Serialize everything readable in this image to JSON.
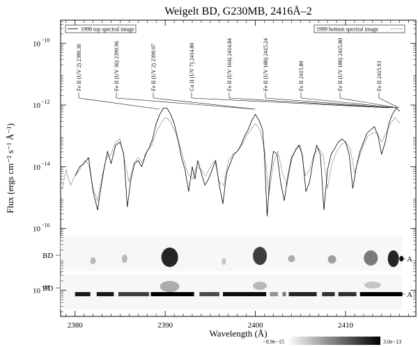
{
  "chart_data": {
    "type": "line",
    "title": "Weigelt BD, G230MB, 2416Å–2",
    "xlabel": "Wavelength (Å)",
    "ylabel": "Flux (ergs cm⁻² s⁻¹ Å⁻¹)",
    "xlim": [
      2378.4,
      2417.8
    ],
    "ylim_log10": [
      -18.85,
      -9.25
    ],
    "y_scale": "log",
    "grid": false,
    "x_ticks": [
      2380,
      2390,
      2400,
      2410
    ],
    "y_ticks_exponent": [
      -10,
      -12,
      -14,
      -16,
      -18
    ],
    "legend": [
      {
        "label": "1998 top spectral image",
        "style": "solid",
        "position": "top-left"
      },
      {
        "label": "1999 bottom spectral image",
        "style": "dotted",
        "position": "top-right"
      }
    ],
    "series": [
      {
        "name": "1998 top spectral image",
        "style": "solid",
        "x": [
          2380.0,
          2380.5,
          2381.0,
          2381.5,
          2382.0,
          2382.5,
          2382.8,
          2383.2,
          2383.6,
          2384.0,
          2384.5,
          2385.0,
          2385.4,
          2385.8,
          2386.2,
          2386.6,
          2387.0,
          2387.4,
          2387.8,
          2388.2,
          2388.6,
          2389.0,
          2389.4,
          2389.8,
          2390.2,
          2390.6,
          2391.0,
          2391.4,
          2391.8,
          2392.2,
          2392.6,
          2393.0,
          2393.3,
          2393.6,
          2394.0,
          2394.4,
          2394.8,
          2395.2,
          2395.6,
          2396.0,
          2396.4,
          2396.8,
          2397.2,
          2397.6,
          2398.0,
          2398.4,
          2398.8,
          2399.2,
          2399.6,
          2400.0,
          2400.4,
          2400.8,
          2401.0,
          2401.3,
          2401.6,
          2402.0,
          2402.4,
          2402.8,
          2403.2,
          2403.6,
          2404.0,
          2404.4,
          2404.8,
          2405.2,
          2405.6,
          2406.0,
          2406.4,
          2406.8,
          2407.2,
          2407.6,
          2408.0,
          2408.4,
          2408.8,
          2409.2,
          2409.6,
          2410.0,
          2410.4,
          2410.8,
          2411.2,
          2411.6,
          2412.0,
          2412.4,
          2412.8,
          2413.2,
          2413.6,
          2414.0,
          2414.4,
          2414.8,
          2415.2,
          2415.6,
          2416.0
        ],
        "y_log10": [
          -14.3,
          -14.0,
          -13.9,
          -13.7,
          -14.8,
          -15.4,
          -14.8,
          -14.1,
          -13.5,
          -13.9,
          -13.3,
          -13.2,
          -13.6,
          -15.3,
          -14.4,
          -13.9,
          -13.8,
          -14.0,
          -13.6,
          -13.4,
          -13.1,
          -12.6,
          -12.3,
          -12.1,
          -12.1,
          -12.3,
          -12.6,
          -13.1,
          -13.7,
          -14.1,
          -14.8,
          -14.0,
          -14.4,
          -13.8,
          -14.2,
          -14.6,
          -14.4,
          -14.1,
          -13.8,
          -14.6,
          -15.2,
          -14.2,
          -13.9,
          -13.6,
          -13.5,
          -13.3,
          -13.0,
          -12.8,
          -12.5,
          -12.3,
          -12.5,
          -12.8,
          -13.6,
          -15.6,
          -14.4,
          -13.5,
          -13.6,
          -14.5,
          -15.1,
          -14.3,
          -13.7,
          -13.5,
          -13.3,
          -13.6,
          -14.8,
          -14.5,
          -13.8,
          -13.3,
          -13.6,
          -15.4,
          -14.1,
          -13.6,
          -13.4,
          -13.2,
          -13.1,
          -13.2,
          -13.6,
          -14.7,
          -14.0,
          -13.5,
          -13.2,
          -12.9,
          -12.8,
          -12.7,
          -13.0,
          -13.6,
          -13.2,
          -12.6,
          -12.3,
          -12.1,
          -12.2
        ]
      },
      {
        "name": "1999 bottom spectral image",
        "style": "dotted",
        "x": [
          2378.6,
          2379.0,
          2379.5,
          2380.0,
          2380.5,
          2381.0,
          2381.5,
          2382.0,
          2382.5,
          2383.0,
          2383.5,
          2384.0,
          2384.5,
          2385.0,
          2385.5,
          2386.0,
          2386.5,
          2387.0,
          2387.5,
          2388.0,
          2388.5,
          2389.0,
          2389.5,
          2390.0,
          2390.5,
          2391.0,
          2391.5,
          2392.0,
          2392.5,
          2393.0,
          2393.5,
          2394.0,
          2394.5,
          2395.0,
          2395.5,
          2396.0,
          2396.5,
          2397.0,
          2397.5,
          2398.0,
          2398.5,
          2399.0,
          2399.5,
          2400.0,
          2400.5,
          2401.0,
          2401.5,
          2402.0,
          2402.5,
          2403.0,
          2403.5,
          2404.0,
          2404.5,
          2405.0,
          2405.5,
          2406.0,
          2406.5,
          2407.0,
          2407.5,
          2408.0,
          2408.5,
          2409.0,
          2409.5,
          2410.0,
          2410.5,
          2411.0,
          2411.5,
          2412.0,
          2412.5,
          2413.0,
          2413.5,
          2414.0,
          2414.5,
          2415.0,
          2415.5,
          2416.0
        ],
        "y_log10": [
          -14.7,
          -14.1,
          -14.6,
          -14.3,
          -14.1,
          -13.8,
          -13.9,
          -14.7,
          -15.1,
          -14.3,
          -13.7,
          -13.6,
          -13.2,
          -13.1,
          -13.8,
          -14.5,
          -13.9,
          -13.7,
          -13.9,
          -13.5,
          -13.3,
          -12.9,
          -12.6,
          -12.4,
          -12.5,
          -12.8,
          -13.2,
          -13.7,
          -14.2,
          -14.4,
          -14.0,
          -14.1,
          -14.3,
          -14.0,
          -13.8,
          -14.5,
          -14.6,
          -13.8,
          -13.6,
          -13.5,
          -13.3,
          -13.0,
          -12.8,
          -12.6,
          -12.8,
          -13.4,
          -14.9,
          -13.9,
          -13.5,
          -14.2,
          -14.6,
          -13.8,
          -13.4,
          -13.3,
          -14.3,
          -14.1,
          -13.6,
          -13.4,
          -13.6,
          -14.7,
          -13.9,
          -13.5,
          -13.3,
          -13.2,
          -13.4,
          -14.2,
          -13.7,
          -13.3,
          -13.0,
          -12.9,
          -12.9,
          -13.2,
          -12.9,
          -12.6,
          -12.4,
          -12.6
        ]
      }
    ],
    "line_ids": [
      {
        "label": "Fe II  (UV 2) 2389.36",
        "wavelength": 2389.36
      },
      {
        "label": "Fe II  (UV 36) 2399.96",
        "wavelength": 2399.96
      },
      {
        "label": "Fe II  (UV 2) 2399.97",
        "wavelength": 2399.97
      },
      {
        "label": "Co II  (UV 7) 2414.80",
        "wavelength": 2414.8
      },
      {
        "label": "Fe II  (UV 164) 2414.84",
        "wavelength": 2414.84
      },
      {
        "label": "Fe II  (UV 180) 2415.24",
        "wavelength": 2415.24
      },
      {
        "label": "Fe II 2415.80",
        "wavelength": 2415.8
      },
      {
        "label": "Fe II  (UV 180) 2415.80",
        "wavelength": 2415.8
      },
      {
        "label": "Fe II 2415.93",
        "wavelength": 2415.93
      }
    ],
    "image_labels": {
      "left": [
        "BD",
        "BD"
      ],
      "right": [
        "A",
        "A"
      ]
    },
    "colorbar": {
      "min_label": "−8.9e−15",
      "max_label": "3.0e−13"
    }
  }
}
